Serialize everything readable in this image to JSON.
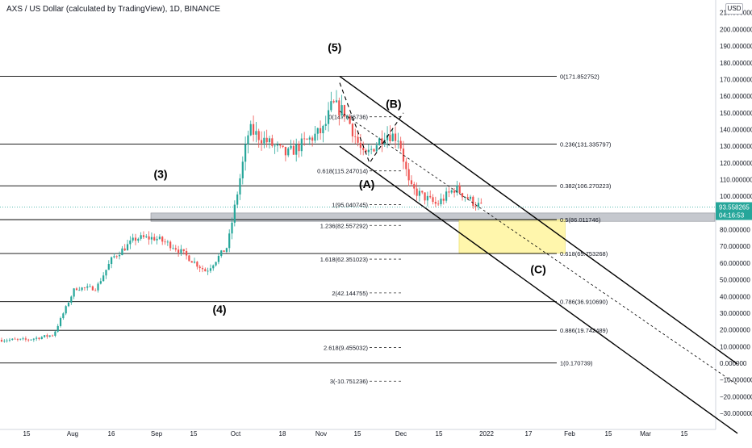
{
  "header": {
    "title": "AXS / US Dollar (calculated by TradingView), 1D, BINANCE",
    "currency_label": "USD"
  },
  "price_axis": {
    "min": -30,
    "max": 210,
    "step": 10,
    "decimals": 6
  },
  "time_axis": {
    "ticks": [
      "15",
      "Aug",
      "16",
      "Sep",
      "15",
      "Oct",
      "18",
      "Nov",
      "15",
      "Dec",
      "15",
      "2022",
      "17",
      "Feb",
      "15",
      "Mar",
      "15"
    ]
  },
  "last_price": {
    "value": 93.558265,
    "value_label": "93.558265",
    "countdown_label": "04:16:53",
    "color": "#26a69a"
  },
  "colors": {
    "up": "#26a69a",
    "down": "#ef5350",
    "fib_line": "#000000",
    "support_zone": "#b2b5be",
    "target_zone": "#fff59d"
  },
  "chart_data": {
    "type": "candlestick",
    "symbol": "AXS / US Dollar",
    "interval": "1D",
    "exchange": "BINANCE",
    "approx_closes": [
      {
        "date": "2021-07-15",
        "close": 14
      },
      {
        "date": "2021-07-25",
        "close": 17
      },
      {
        "date": "2021-08-02",
        "close": 45
      },
      {
        "date": "2021-08-10",
        "close": 45
      },
      {
        "date": "2021-08-16",
        "close": 63
      },
      {
        "date": "2021-08-25",
        "close": 75
      },
      {
        "date": "2021-09-01",
        "close": 75
      },
      {
        "date": "2021-09-08",
        "close": 70
      },
      {
        "date": "2021-09-20",
        "close": 55
      },
      {
        "date": "2021-09-28",
        "close": 70
      },
      {
        "date": "2021-10-02",
        "close": 105
      },
      {
        "date": "2021-10-06",
        "close": 140
      },
      {
        "date": "2021-10-20",
        "close": 125
      },
      {
        "date": "2021-11-03",
        "close": 140
      },
      {
        "date": "2021-11-06",
        "close": 155
      },
      {
        "date": "2021-11-11",
        "close": 150
      },
      {
        "date": "2021-11-18",
        "close": 123
      },
      {
        "date": "2021-11-26",
        "close": 138
      },
      {
        "date": "2021-12-01",
        "close": 135
      },
      {
        "date": "2021-12-05",
        "close": 105
      },
      {
        "date": "2021-12-15",
        "close": 95
      },
      {
        "date": "2021-12-22",
        "close": 105
      },
      {
        "date": "2021-12-29",
        "close": 96
      },
      {
        "date": "2022-01-01",
        "close": 93.56
      }
    ],
    "fib_levels_long": [
      {
        "label": "0(171.852752)",
        "value": 171.852752
      },
      {
        "label": "0.236(131.335797)",
        "value": 131.335797
      },
      {
        "label": "0.382(106.270223)",
        "value": 106.270223
      },
      {
        "label": "0.5(86.011746)",
        "value": 86.011746
      },
      {
        "label": "0.618(65.753268)",
        "value": 65.753268
      },
      {
        "label": "0.786(36.910690)",
        "value": 36.91069
      },
      {
        "label": "0.886(19.742489)",
        "value": 19.742489
      },
      {
        "label": "1(0.170739)",
        "value": 0.170739
      }
    ],
    "fib_levels_short": [
      {
        "label": "0(147.636736)",
        "value": 147.636736
      },
      {
        "label": "0.618(115.247014)",
        "value": 115.247014
      },
      {
        "label": "1(95.040745)",
        "value": 95.040745
      },
      {
        "label": "1.236(82.557292)",
        "value": 82.557292
      },
      {
        "label": "1.618(62.351023)",
        "value": 62.351023
      },
      {
        "label": "2(42.144755)",
        "value": 42.144755
      },
      {
        "label": "2.618(9.455032)",
        "value": 9.455032
      },
      {
        "label": "3(-10.751236)",
        "value": -10.751236
      }
    ],
    "wave_labels": [
      {
        "text": "(3)",
        "date": "2021-09-03",
        "price": 111
      },
      {
        "text": "(4)",
        "date": "2021-09-25",
        "price": 30
      },
      {
        "text": "(5)",
        "date": "2021-11-07",
        "price": 187
      },
      {
        "text": "(A)",
        "date": "2021-11-19",
        "price": 105
      },
      {
        "text": "(B)",
        "date": "2021-11-29",
        "price": 153
      },
      {
        "text": "(C)",
        "date": "2022-01-22",
        "price": 54
      }
    ],
    "support_zone": {
      "price_top": 90,
      "price_bottom": 85
    },
    "target_zone": {
      "date_start": "2021-12-15",
      "date_end": "2022-02-01",
      "price_top": 86,
      "price_bottom": 66
    }
  }
}
